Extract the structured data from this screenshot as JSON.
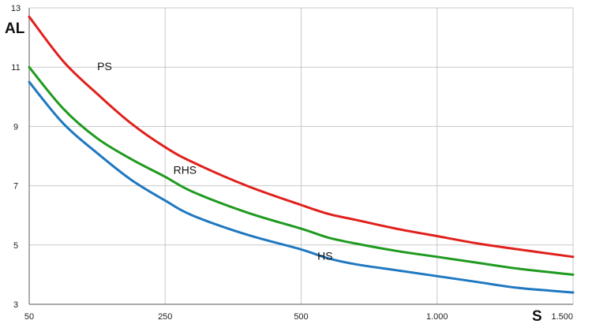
{
  "chart_data": {
    "type": "line",
    "xlabel": "S",
    "ylabel": "AL",
    "x_ticks": [
      {
        "value": 50,
        "label": "50"
      },
      {
        "value": 250,
        "label": "250"
      },
      {
        "value": 500,
        "label": "500"
      },
      {
        "value": 1000,
        "label": "1.000"
      },
      {
        "value": 1500,
        "label": "1.500"
      }
    ],
    "y_ticks": [
      {
        "value": 3,
        "label": "3"
      },
      {
        "value": 5,
        "label": "5"
      },
      {
        "value": 7,
        "label": "7"
      },
      {
        "value": 9,
        "label": "9"
      },
      {
        "value": 11,
        "label": "11"
      },
      {
        "value": 13,
        "label": "13"
      }
    ],
    "ylim": [
      3,
      13
    ],
    "grid": true,
    "series": [
      {
        "name": "PS",
        "color": "#e0201c",
        "x": [
          50,
          100,
          150,
          200,
          250,
          300,
          400,
          500,
          600,
          700,
          850,
          1000,
          1150,
          1300,
          1500
        ],
        "y": [
          12.7,
          11.2,
          10.1,
          9.1,
          8.3,
          7.8,
          7.0,
          6.35,
          6.05,
          5.85,
          5.55,
          5.3,
          5.05,
          4.85,
          4.6
        ]
      },
      {
        "name": "RHS",
        "color": "#1f9a1f",
        "x": [
          50,
          100,
          150,
          200,
          250,
          300,
          400,
          500,
          600,
          700,
          850,
          1000,
          1150,
          1300,
          1500
        ],
        "y": [
          11.0,
          9.6,
          8.6,
          7.9,
          7.3,
          6.8,
          6.1,
          5.55,
          5.25,
          5.05,
          4.8,
          4.6,
          4.4,
          4.2,
          4.0
        ]
      },
      {
        "name": "HS",
        "color": "#1f78c0",
        "x": [
          50,
          100,
          150,
          200,
          250,
          300,
          400,
          500,
          600,
          700,
          850,
          1000,
          1150,
          1300,
          1500
        ],
        "y": [
          10.5,
          9.1,
          8.1,
          7.2,
          6.5,
          6.0,
          5.35,
          4.85,
          4.55,
          4.35,
          4.15,
          3.95,
          3.75,
          3.55,
          3.4
        ]
      }
    ]
  }
}
